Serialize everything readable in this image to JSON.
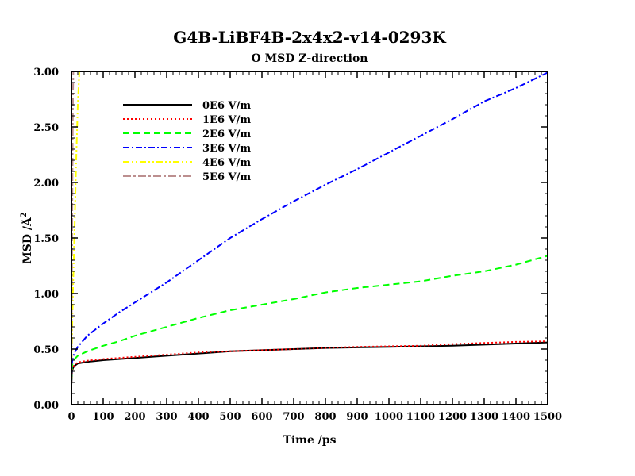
{
  "chart_data": {
    "type": "line",
    "title": "G4B-LiBF4B-2x4x2-v14-0293K",
    "subtitle": "O MSD Z-direction",
    "xlabel": "Time /ps",
    "ylabel_text": "MSD /Å",
    "ylabel_sup": "2",
    "xlim": [
      0,
      1500
    ],
    "ylim": [
      0,
      3.0
    ],
    "x_ticks": [
      "0",
      "100",
      "200",
      "300",
      "400",
      "500",
      "600",
      "700",
      "800",
      "900",
      "1000",
      "1100",
      "1200",
      "1300",
      "1400",
      "1500"
    ],
    "y_ticks": [
      "0.00",
      "0.50",
      "1.00",
      "1.50",
      "2.00",
      "2.50",
      "3.00"
    ],
    "grid": false,
    "legend_position": "top-left",
    "series": [
      {
        "name": "0E6 V/m",
        "color": "#000000",
        "dash": "solid",
        "points": [
          [
            0,
            0.18
          ],
          [
            2,
            0.3
          ],
          [
            5,
            0.33
          ],
          [
            10,
            0.35
          ],
          [
            20,
            0.37
          ],
          [
            50,
            0.385
          ],
          [
            100,
            0.4
          ],
          [
            200,
            0.42
          ],
          [
            300,
            0.44
          ],
          [
            400,
            0.46
          ],
          [
            500,
            0.48
          ],
          [
            600,
            0.49
          ],
          [
            700,
            0.5
          ],
          [
            800,
            0.51
          ],
          [
            900,
            0.515
          ],
          [
            1000,
            0.52
          ],
          [
            1100,
            0.525
          ],
          [
            1200,
            0.53
          ],
          [
            1300,
            0.54
          ],
          [
            1400,
            0.55
          ],
          [
            1500,
            0.56
          ]
        ]
      },
      {
        "name": "1E6 V/m",
        "color": "#ff0000",
        "dash": "dotted",
        "points": [
          [
            0,
            0.2
          ],
          [
            2,
            0.31
          ],
          [
            5,
            0.34
          ],
          [
            10,
            0.36
          ],
          [
            20,
            0.38
          ],
          [
            50,
            0.395
          ],
          [
            100,
            0.41
          ],
          [
            200,
            0.43
          ],
          [
            300,
            0.45
          ],
          [
            400,
            0.47
          ],
          [
            500,
            0.48
          ],
          [
            600,
            0.49
          ],
          [
            700,
            0.5
          ],
          [
            800,
            0.51
          ],
          [
            900,
            0.52
          ],
          [
            1000,
            0.525
          ],
          [
            1100,
            0.53
          ],
          [
            1200,
            0.545
          ],
          [
            1300,
            0.555
          ],
          [
            1400,
            0.565
          ],
          [
            1500,
            0.57
          ]
        ]
      },
      {
        "name": "2E6 V/m",
        "color": "#00ff00",
        "dash": "dashed",
        "points": [
          [
            0,
            0.22
          ],
          [
            2,
            0.35
          ],
          [
            5,
            0.39
          ],
          [
            10,
            0.41
          ],
          [
            20,
            0.44
          ],
          [
            50,
            0.48
          ],
          [
            100,
            0.53
          ],
          [
            150,
            0.57
          ],
          [
            200,
            0.62
          ],
          [
            300,
            0.7
          ],
          [
            400,
            0.78
          ],
          [
            500,
            0.85
          ],
          [
            600,
            0.9
          ],
          [
            700,
            0.95
          ],
          [
            800,
            1.01
          ],
          [
            900,
            1.05
          ],
          [
            1000,
            1.08
          ],
          [
            1100,
            1.11
          ],
          [
            1200,
            1.16
          ],
          [
            1300,
            1.2
          ],
          [
            1400,
            1.26
          ],
          [
            1500,
            1.34
          ]
        ]
      },
      {
        "name": "3E6 V/m",
        "color": "#0000ff",
        "dash": "dashdot",
        "points": [
          [
            0,
            0.25
          ],
          [
            2,
            0.38
          ],
          [
            5,
            0.43
          ],
          [
            10,
            0.47
          ],
          [
            20,
            0.52
          ],
          [
            50,
            0.62
          ],
          [
            100,
            0.73
          ],
          [
            150,
            0.83
          ],
          [
            200,
            0.92
          ],
          [
            300,
            1.1
          ],
          [
            400,
            1.3
          ],
          [
            500,
            1.5
          ],
          [
            600,
            1.67
          ],
          [
            700,
            1.83
          ],
          [
            800,
            1.98
          ],
          [
            900,
            2.12
          ],
          [
            1000,
            2.27
          ],
          [
            1100,
            2.42
          ],
          [
            1200,
            2.57
          ],
          [
            1300,
            2.73
          ],
          [
            1400,
            2.85
          ],
          [
            1500,
            2.99
          ]
        ]
      },
      {
        "name": "4E6 V/m",
        "color": "#ffff00",
        "dash": "dashdotdot",
        "points": [
          [
            0,
            0.25
          ],
          [
            2,
            0.65
          ],
          [
            5,
            1.05
          ],
          [
            10,
            1.6
          ],
          [
            15,
            2.2
          ],
          [
            20,
            2.7
          ],
          [
            25,
            3.0
          ]
        ]
      },
      {
        "name": "5E6 V/m",
        "color": "#bc8f8f",
        "dash": "longdashdot",
        "points": [
          [
            0,
            0.25
          ],
          [
            1,
            0.9
          ],
          [
            2,
            1.4
          ],
          [
            3,
            1.9
          ],
          [
            4,
            2.4
          ],
          [
            5,
            2.8
          ],
          [
            6,
            3.0
          ]
        ]
      }
    ]
  }
}
